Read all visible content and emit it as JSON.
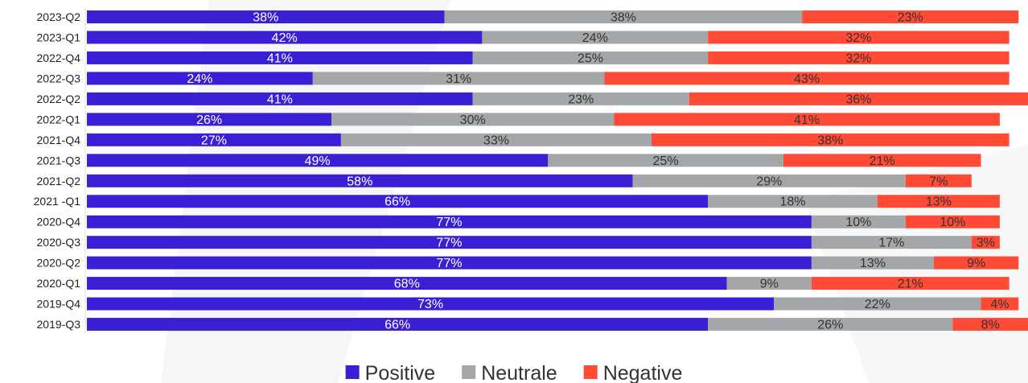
{
  "chart_data": {
    "type": "stacked_barh",
    "categories": [
      "2023-Q2",
      "2023-Q1",
      "2022-Q4",
      "2022-Q3",
      "2022-Q2",
      "2022-Q1",
      "2021-Q4",
      "2021-Q3",
      "2021-Q2",
      "2021 -Q1",
      "2020-Q4",
      "2020-Q3",
      "2020-Q2",
      "2020-Q1",
      "2019-Q4",
      "2019-Q3"
    ],
    "xlim": [
      0,
      100
    ],
    "legend": "bottom",
    "series": [
      {
        "name": "Positive",
        "color": "#3a20d4",
        "label_color": "#ffffff",
        "values": [
          38,
          42,
          41,
          24,
          41,
          26,
          27,
          49,
          58,
          66,
          77,
          77,
          77,
          68,
          73,
          66
        ],
        "value_labels": [
          "38%",
          "42%",
          "41%",
          "24%",
          "41%",
          "26%",
          "27%",
          "49%",
          "58%",
          "66%",
          "77%",
          "77%",
          "77%",
          "68%",
          "73%",
          "66%"
        ]
      },
      {
        "name": "Neutrale",
        "color": "#a4a7a9",
        "label_color": "#333333",
        "values": [
          38,
          24,
          25,
          31,
          23,
          30,
          33,
          25,
          29,
          18,
          10,
          17,
          13,
          9,
          22,
          26
        ],
        "value_labels": [
          "38%",
          "24%",
          "25%",
          "31%",
          "23%",
          "30%",
          "33%",
          "25%",
          "29%",
          "18%",
          "10%",
          "17%",
          "13%",
          "9%",
          "22%",
          "26%"
        ]
      },
      {
        "name": "Negative",
        "color": "#ff4a35",
        "label_color": "#333333",
        "values": [
          23,
          32,
          32,
          43,
          36,
          41,
          38,
          21,
          7,
          13,
          10,
          3,
          9,
          21,
          4,
          8
        ],
        "value_labels": [
          "23%",
          "32%",
          "32%",
          "43%",
          "36%",
          "41%",
          "38%",
          "21%",
          "7%",
          "13%",
          "10%",
          "3%",
          "9%",
          "21%",
          "4%",
          "8%"
        ]
      }
    ]
  }
}
